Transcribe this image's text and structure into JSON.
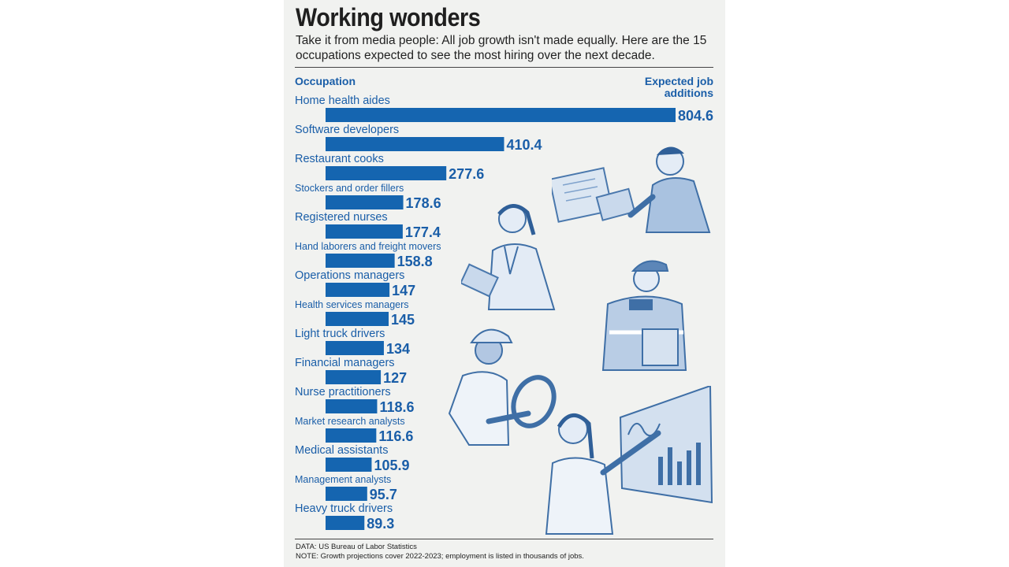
{
  "title": "Working wonders",
  "subtitle": "Take it from media people: All job growth isn't made equally. Here are the 15 occupations expected to see the most hiring over the next decade.",
  "headers": {
    "left": "Occupation",
    "right": "Expected job additions"
  },
  "colors": {
    "bar": "#1565b0",
    "label": "#1a5ea8",
    "value": "#1a5ea8",
    "background": "#f1f2f0"
  },
  "chart_data": {
    "type": "bar",
    "orientation": "horizontal",
    "categories": [
      "Home health aides",
      "Software developers",
      "Restaurant cooks",
      "Stockers and order fillers",
      "Registered nurses",
      "Hand laborers and freight movers",
      "Operations managers",
      "Health services managers",
      "Light truck drivers",
      "Financial managers",
      "Nurse practitioners",
      "Market research analysts",
      "Medical assistants",
      "Management analysts",
      "Heavy truck drivers"
    ],
    "values": [
      804.6,
      410.4,
      277.6,
      178.6,
      177.4,
      158.8,
      147,
      145,
      134,
      127,
      118.6,
      116.6,
      105.9,
      95.7,
      89.3
    ],
    "value_labels": [
      "804.6",
      "410.4",
      "277.6",
      "178.6",
      "177.4",
      "158.8",
      "147",
      "145",
      "134",
      "127",
      "118.6",
      "116.6",
      "105.9",
      "95.7",
      "89.3"
    ],
    "xlim": [
      0,
      804.6
    ],
    "grid": false,
    "legend": "none"
  },
  "footer": {
    "data_source": "DATA: US Bureau of Labor Statistics",
    "note": "NOTE: Growth projections cover 2022-2023; employment is listed in thousands of jobs."
  },
  "illustrations": [
    "programmer-illustration",
    "nurse-illustration",
    "warehouse-worker-illustration",
    "truck-driver-illustration",
    "analyst-illustration"
  ]
}
